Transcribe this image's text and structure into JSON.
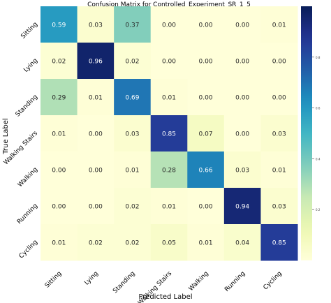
{
  "chart_data": {
    "type": "heatmap",
    "title": "Confusion Matrix for Controlled_Experiment_SR_1_5",
    "xlabel": "Predicted Label",
    "ylabel": "True Label",
    "x_categories": [
      "Sitting",
      "Lying",
      "Standing",
      "Walking Stairs",
      "Walking",
      "Running",
      "Cycling"
    ],
    "y_categories": [
      "Sitting",
      "Lying",
      "Standing",
      "Walking Stairs",
      "Walking",
      "Running",
      "Cycling"
    ],
    "values": [
      [
        0.59,
        0.03,
        0.37,
        0.0,
        0.0,
        0.0,
        0.01
      ],
      [
        0.02,
        0.96,
        0.02,
        0.0,
        0.0,
        0.0,
        0.0
      ],
      [
        0.29,
        0.01,
        0.69,
        0.01,
        0.0,
        0.0,
        0.0
      ],
      [
        0.01,
        0.0,
        0.03,
        0.85,
        0.07,
        0.0,
        0.03
      ],
      [
        0.0,
        0.0,
        0.01,
        0.28,
        0.66,
        0.03,
        0.01
      ],
      [
        0.0,
        0.0,
        0.02,
        0.01,
        0.0,
        0.94,
        0.03
      ],
      [
        0.01,
        0.02,
        0.02,
        0.05,
        0.01,
        0.04,
        0.85
      ]
    ],
    "value_range": [
      0,
      1
    ],
    "colormap": "YlGnBu",
    "colorbar_ticks": [
      0.2,
      0.4,
      0.6,
      0.8
    ],
    "colorbar": true,
    "grid": false,
    "legend": "colorbar-right"
  }
}
